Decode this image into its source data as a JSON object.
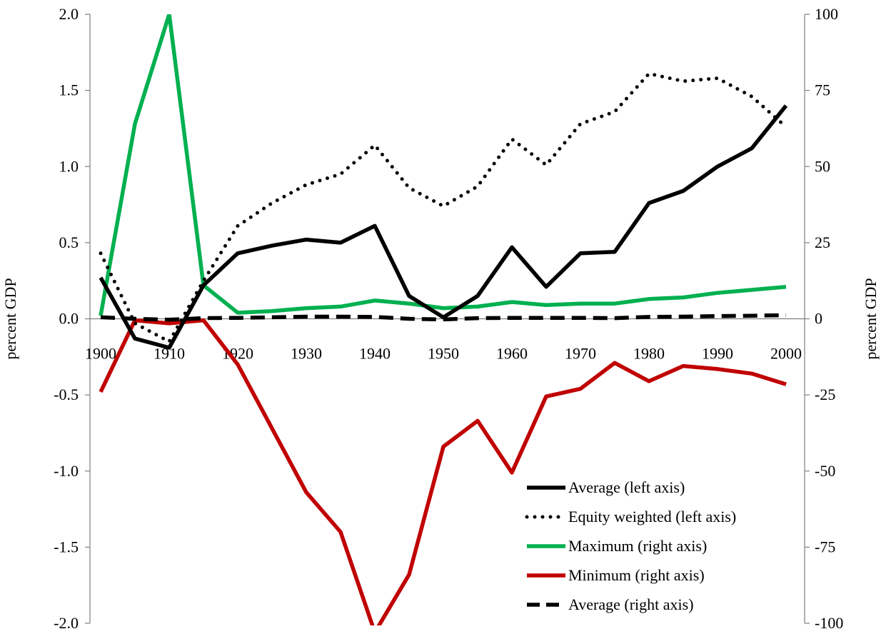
{
  "chart_data": {
    "type": "line",
    "title": "",
    "x": [
      1900,
      1905,
      1910,
      1915,
      1920,
      1925,
      1930,
      1935,
      1940,
      1945,
      1950,
      1955,
      1960,
      1965,
      1970,
      1975,
      1980,
      1985,
      1990,
      1995,
      2000
    ],
    "x_ticks": [
      1900,
      1910,
      1920,
      1930,
      1940,
      1950,
      1960,
      1970,
      1980,
      1990,
      2000
    ],
    "left_axis": {
      "label": "percent GDP",
      "ylim": [
        -2.0,
        2.0
      ],
      "ticks": [
        "2.0",
        "1.5",
        "1.0",
        "0.5",
        "0.0",
        "-0.5",
        "-1.0",
        "-1.5",
        "-2.0"
      ]
    },
    "right_axis": {
      "label": "percent GDP",
      "ylim": [
        -100,
        100
      ],
      "ticks": [
        "100",
        "75",
        "50",
        "25",
        "0",
        "-25",
        "-50",
        "-75",
        "-100"
      ]
    },
    "legend_position": "bottom-right",
    "grid": false,
    "series": [
      {
        "name": "Average (left axis)",
        "axis": "left",
        "color": "#000000",
        "style": "solid",
        "values": [
          0.27,
          -0.13,
          -0.19,
          0.22,
          0.43,
          0.48,
          0.52,
          0.5,
          0.61,
          0.15,
          0.01,
          0.15,
          0.47,
          0.21,
          0.43,
          0.44,
          0.76,
          0.84,
          1.0,
          1.12,
          1.4
        ]
      },
      {
        "name": "Equity weighted (left axis)",
        "axis": "left",
        "color": "#000000",
        "style": "dotted",
        "values": [
          0.43,
          -0.03,
          -0.15,
          0.25,
          0.61,
          0.76,
          0.88,
          0.95,
          1.14,
          0.86,
          0.74,
          0.87,
          1.18,
          1.01,
          1.28,
          1.36,
          1.61,
          1.56,
          1.58,
          1.46,
          1.26
        ]
      },
      {
        "name": "Maximum (right axis)",
        "axis": "right",
        "color": "#00b050",
        "style": "solid",
        "values": [
          1,
          64,
          100,
          11,
          2,
          2.5,
          3.5,
          4,
          6,
          5,
          3.5,
          4,
          5.5,
          4.5,
          5,
          5,
          6.5,
          7,
          8.5,
          9.5,
          10.5
        ]
      },
      {
        "name": "Minimum (right axis)",
        "axis": "right",
        "color": "#c00000",
        "style": "solid",
        "values": [
          -24,
          -0.5,
          -1.5,
          -0.5,
          -15,
          -36,
          -57,
          -70,
          -103,
          -84,
          -42,
          -33.5,
          -50.5,
          -25.5,
          -23,
          -14.5,
          -20.5,
          -15.5,
          -16.5,
          -18,
          -21.5
        ]
      },
      {
        "name": "Average (right axis)",
        "axis": "right",
        "color": "#000000",
        "style": "dashed",
        "values": [
          0.5,
          0,
          -0.3,
          0.2,
          0.3,
          0.5,
          0.7,
          0.7,
          0.6,
          0,
          -0.2,
          0.2,
          0.3,
          0.3,
          0.3,
          0.2,
          0.6,
          0.7,
          0.9,
          1,
          1.2
        ]
      }
    ]
  }
}
